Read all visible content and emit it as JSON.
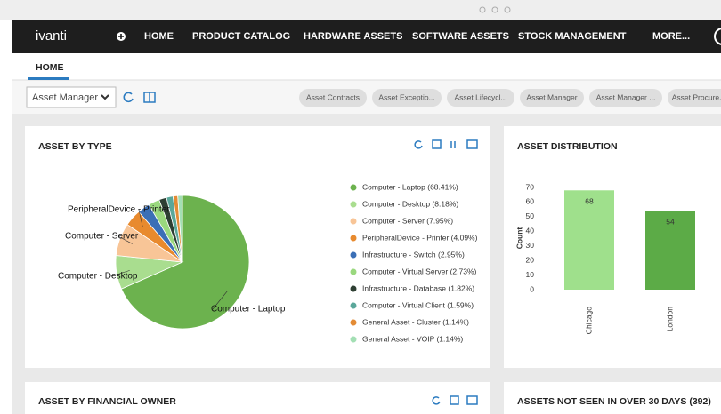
{
  "nav": {
    "brand": "ivanti",
    "items": [
      "HOME",
      "PRODUCT CATALOG",
      "HARDWARE ASSETS",
      "SOFTWARE ASSETS",
      "STOCK MANAGEMENT",
      "MORE..."
    ]
  },
  "tabs": [
    "HOME"
  ],
  "toolbar": {
    "dropdown": "Asset Manager",
    "chips": [
      "Asset Contracts",
      "Asset Exceptio...",
      "Asset Lifecycl...",
      "Asset Manager",
      "Asset Manager ...",
      "Asset Procure..."
    ]
  },
  "panels": [
    "ASSET BY FINANCIAL OWNER",
    "ASSETS NOT SEEN IN OVER 30 DAYS (392)"
  ],
  "chart_data": [
    {
      "type": "pie",
      "title": "ASSET BY TYPE",
      "categories": [
        "Computer - Laptop",
        "Computer - Desktop",
        "Computer - Server",
        "PeripheralDevice - Printer",
        "Infrastructure - Switch",
        "Computer - Virtual Server",
        "Infrastructure - Database",
        "Computer - Virtual Client",
        "General Asset - Cluster",
        "General Asset - VOIP"
      ],
      "values": [
        68.41,
        8.18,
        7.95,
        4.09,
        2.95,
        2.73,
        1.82,
        1.59,
        1.14,
        1.14
      ],
      "legend_labels": [
        "Computer - Laptop (68.41%)",
        "Computer - Desktop (8.18%)",
        "Computer - Server (7.95%)",
        "PeripheralDevice - Printer (4.09%)",
        "Infrastructure - Switch (2.95%)",
        "Computer - Virtual Server (2.73%)",
        "Infrastructure - Database (1.82%)",
        "Computer - Virtual Client (1.59%)",
        "General Asset - Cluster (1.14%)",
        "General Asset - VOIP (1.14%)"
      ],
      "colors": [
        "#6cb24e",
        "#a9dd8f",
        "#f8c597",
        "#e88a2e",
        "#3b6fb6",
        "#9ad87e",
        "#2e3f33",
        "#5aa79a",
        "#e38b35",
        "#a3dfb4"
      ]
    },
    {
      "type": "bar",
      "title": "ASSET DISTRIBUTION",
      "categories": [
        "Chicago",
        "London"
      ],
      "values": [
        68,
        54
      ],
      "colors": [
        "#9fe08c",
        "#5cab47"
      ],
      "ylabel": "Count",
      "ylim": [
        0,
        70
      ],
      "yticks": [
        0,
        10,
        20,
        30,
        40,
        50,
        60,
        70
      ]
    }
  ]
}
